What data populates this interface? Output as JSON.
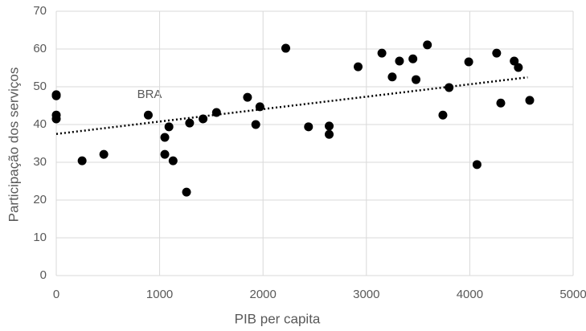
{
  "chart_data": {
    "type": "scatter",
    "x_label": "PIB per capita",
    "y_label": "Participação dos serviços",
    "annotation": "BRA",
    "x": [
      0,
      0,
      0,
      0,
      250,
      460,
      890,
      1050,
      1090,
      1050,
      1130,
      1260,
      1290,
      1420,
      1550,
      1850,
      1930,
      1970,
      2220,
      2440,
      2640,
      2640,
      2920,
      3150,
      3250,
      3320,
      3450,
      3480,
      3590,
      3740,
      3800,
      3990,
      4070,
      4260,
      4300,
      4430,
      4470,
      4580
    ],
    "values": [
      47.9,
      47.6,
      42.5,
      41.5,
      30.4,
      32.1,
      42.5,
      36.6,
      39.4,
      32.1,
      30.4,
      22.1,
      40.4,
      41.5,
      43.2,
      47.2,
      40,
      44.7,
      60.2,
      39.4,
      39.6,
      37.4,
      55.3,
      58.9,
      52.6,
      56.8,
      57.4,
      51.9,
      61.1,
      42.5,
      49.8,
      56.6,
      29.4,
      58.9,
      45.7,
      56.8,
      55.1,
      46.4
    ],
    "color": "#000000",
    "trendline": {
      "x": [
        0,
        4560
      ],
      "values": [
        37.5,
        52.5
      ]
    },
    "xlim": [
      0,
      5000
    ],
    "xticks": [
      0,
      1000,
      2000,
      3000,
      4000,
      5000
    ],
    "ylim": [
      0,
      70
    ],
    "yticks": [
      0,
      10,
      20,
      30,
      40,
      50,
      60,
      70
    ],
    "grid": true
  }
}
